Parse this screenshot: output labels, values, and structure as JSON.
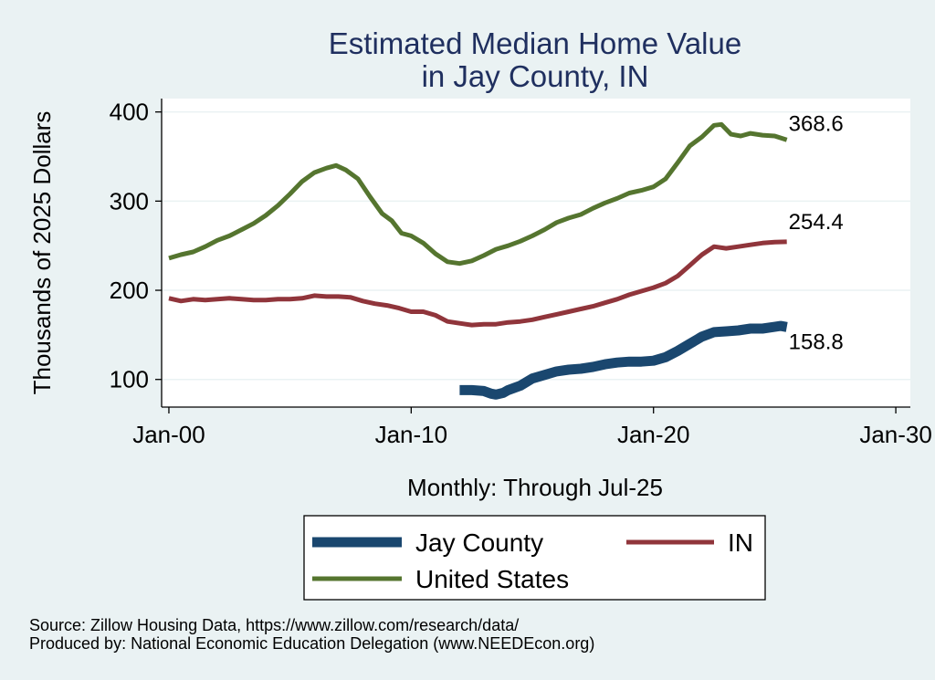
{
  "chart_data": {
    "type": "line",
    "title": [
      "Estimated Median Home Value",
      "in Jay County, IN"
    ],
    "xlabel": "Monthly: Through Jul-25",
    "ylabel": "Thousands of 2025 Dollars",
    "x_ticks": [
      {
        "label": "Jan-00",
        "year": 2000
      },
      {
        "label": "Jan-10",
        "year": 2010
      },
      {
        "label": "Jan-20",
        "year": 2020
      },
      {
        "label": "Jan-30",
        "year": 2030
      }
    ],
    "y_ticks": [
      100,
      200,
      300,
      400
    ],
    "xlim": [
      1999.7,
      2030.6
    ],
    "ylim": [
      69,
      415
    ],
    "grid": true,
    "legend_position": "bottom",
    "series": [
      {
        "name": "Jay County",
        "color": "#1a476f",
        "end_label": "158.8",
        "x": [
          2012.0,
          2012.5,
          2013.0,
          2013.3,
          2013.5,
          2013.8,
          2014.0,
          2014.5,
          2015.0,
          2015.5,
          2016.0,
          2016.5,
          2017.0,
          2017.5,
          2018.0,
          2018.5,
          2019.0,
          2019.5,
          2020.0,
          2020.5,
          2021.0,
          2021.5,
          2022.0,
          2022.5,
          2023.0,
          2023.5,
          2024.0,
          2024.5,
          2025.0,
          2025.25,
          2025.5
        ],
        "y": [
          88,
          88,
          87,
          84,
          83,
          85,
          88,
          93,
          101,
          105,
          109,
          111,
          112,
          114,
          117,
          119,
          120,
          120,
          121,
          125,
          132,
          140,
          148,
          153,
          154,
          155,
          157,
          157,
          159,
          160,
          158.8
        ]
      },
      {
        "name": "IN",
        "color": "#90353b",
        "end_label": "254.4",
        "x": [
          2000.0,
          2000.5,
          2001.0,
          2001.5,
          2002.0,
          2002.5,
          2003.0,
          2003.5,
          2004.0,
          2004.5,
          2005.0,
          2005.5,
          2006.0,
          2006.5,
          2007.0,
          2007.5,
          2008.0,
          2008.5,
          2009.0,
          2009.5,
          2010.0,
          2010.5,
          2011.0,
          2011.5,
          2012.0,
          2012.5,
          2013.0,
          2013.5,
          2014.0,
          2014.5,
          2015.0,
          2015.5,
          2016.0,
          2016.5,
          2017.0,
          2017.5,
          2018.0,
          2018.5,
          2019.0,
          2019.5,
          2020.0,
          2020.5,
          2021.0,
          2021.5,
          2022.0,
          2022.5,
          2023.0,
          2023.5,
          2024.0,
          2024.5,
          2025.0,
          2025.5
        ],
        "y": [
          191,
          188,
          190,
          189,
          190,
          191,
          190,
          189,
          189,
          190,
          190,
          191,
          194,
          193,
          193,
          192,
          188,
          185,
          183,
          180,
          176,
          176,
          172,
          165,
          163,
          161,
          162,
          162,
          164,
          165,
          167,
          170,
          173,
          176,
          179,
          182,
          186,
          190,
          195,
          199,
          203,
          208,
          216,
          228,
          240,
          249,
          247,
          249,
          251,
          253,
          254,
          254.4
        ]
      },
      {
        "name": "United States",
        "color": "#55752f",
        "end_label": "368.6",
        "x": [
          2000.0,
          2000.5,
          2001.0,
          2001.5,
          2002.0,
          2002.5,
          2003.0,
          2003.5,
          2004.0,
          2004.5,
          2005.0,
          2005.5,
          2006.0,
          2006.5,
          2006.9,
          2007.3,
          2007.8,
          2008.3,
          2008.8,
          2009.2,
          2009.6,
          2010.0,
          2010.5,
          2011.0,
          2011.5,
          2012.0,
          2012.5,
          2013.0,
          2013.5,
          2014.0,
          2014.5,
          2015.0,
          2015.5,
          2016.0,
          2016.5,
          2017.0,
          2017.5,
          2018.0,
          2018.5,
          2019.0,
          2019.5,
          2020.0,
          2020.5,
          2021.0,
          2021.5,
          2022.0,
          2022.5,
          2022.8,
          2023.2,
          2023.6,
          2024.0,
          2024.5,
          2025.0,
          2025.5
        ],
        "y": [
          236,
          240,
          243,
          249,
          256,
          261,
          268,
          275,
          284,
          295,
          308,
          322,
          332,
          337,
          340,
          335,
          325,
          305,
          286,
          278,
          264,
          261,
          253,
          241,
          232,
          230,
          233,
          239,
          246,
          250,
          255,
          261,
          268,
          276,
          281,
          285,
          292,
          298,
          303,
          309,
          312,
          316,
          325,
          343,
          362,
          372,
          385,
          386,
          375,
          373,
          376,
          374,
          373,
          368.6
        ]
      }
    ]
  },
  "footer": {
    "source": "Source: Zillow Housing Data, https://www.zillow.com/research/data/",
    "produced_by": "Produced by: National Economic Education Delegation (www.NEEDEcon.org)"
  }
}
